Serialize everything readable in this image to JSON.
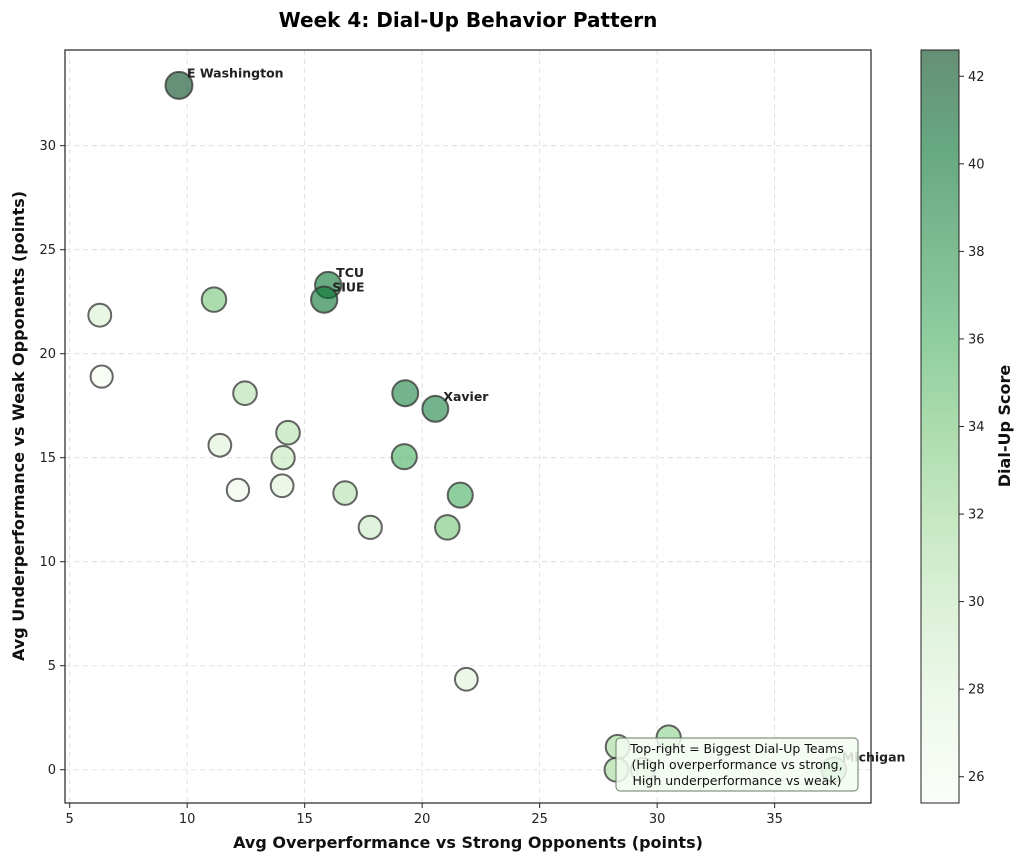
{
  "chart_data": {
    "type": "scatter",
    "title": "Week 4: Dial-Up Behavior Pattern",
    "xlabel": "Avg Overperformance vs Strong Opponents (points)",
    "ylabel": "Avg Underperformance vs Weak Opponents (points)",
    "xlim": [
      4.8,
      39.1
    ],
    "ylim": [
      -1.6,
      34.6
    ],
    "xticks": [
      5,
      10,
      15,
      20,
      25,
      30,
      35
    ],
    "yticks": [
      0,
      5,
      10,
      15,
      20,
      25,
      30
    ],
    "grid": true,
    "colorbar": {
      "label": "Dial-Up Score",
      "range": [
        25.4,
        42.6
      ],
      "ticks": [
        26,
        28,
        30,
        32,
        34,
        36,
        38,
        40,
        42
      ],
      "colormap": "Greens"
    },
    "points": [
      {
        "x": 9.65,
        "y": 32.9,
        "score": 42.5,
        "label": "E Washington"
      },
      {
        "x": 6.28,
        "y": 21.85,
        "score": 28.5,
        "label": ""
      },
      {
        "x": 6.36,
        "y": 18.9,
        "score": 26.0,
        "label": ""
      },
      {
        "x": 11.14,
        "y": 22.6,
        "score": 34.0,
        "label": ""
      },
      {
        "x": 16.0,
        "y": 23.3,
        "score": 40.0,
        "label": "TCU"
      },
      {
        "x": 15.83,
        "y": 22.6,
        "score": 40.0,
        "label": "SIUE"
      },
      {
        "x": 12.46,
        "y": 18.1,
        "score": 31.0,
        "label": ""
      },
      {
        "x": 11.39,
        "y": 15.6,
        "score": 28.0,
        "label": ""
      },
      {
        "x": 14.29,
        "y": 16.2,
        "score": 31.0,
        "label": ""
      },
      {
        "x": 14.08,
        "y": 15.0,
        "score": 30.0,
        "label": ""
      },
      {
        "x": 12.16,
        "y": 13.45,
        "score": 26.5,
        "label": ""
      },
      {
        "x": 14.04,
        "y": 13.65,
        "score": 28.0,
        "label": ""
      },
      {
        "x": 19.28,
        "y": 18.1,
        "score": 39.0,
        "label": ""
      },
      {
        "x": 20.56,
        "y": 17.35,
        "score": 39.0,
        "label": "Xavier"
      },
      {
        "x": 19.24,
        "y": 15.05,
        "score": 36.0,
        "label": ""
      },
      {
        "x": 16.72,
        "y": 13.3,
        "score": 31.0,
        "label": ""
      },
      {
        "x": 17.79,
        "y": 11.65,
        "score": 29.5,
        "label": ""
      },
      {
        "x": 21.62,
        "y": 13.2,
        "score": 36.0,
        "label": ""
      },
      {
        "x": 21.07,
        "y": 11.65,
        "score": 34.0,
        "label": ""
      },
      {
        "x": 21.88,
        "y": 4.35,
        "score": 28.0,
        "label": ""
      },
      {
        "x": 28.32,
        "y": 1.1,
        "score": 32.0,
        "label": ""
      },
      {
        "x": 28.27,
        "y": 0.0,
        "score": 32.0,
        "label": ""
      },
      {
        "x": 29.38,
        "y": 0.0,
        "score": 31.0,
        "label": ""
      },
      {
        "x": 30.49,
        "y": 1.55,
        "score": 33.0,
        "label": ""
      },
      {
        "x": 37.52,
        "y": 0.0,
        "score": 35.0,
        "label": "Michigan"
      }
    ],
    "annotation_box": [
      "Top-right = Biggest Dial-Up Teams",
      "(High overperformance vs strong,",
      "High underperformance vs weak)"
    ]
  }
}
